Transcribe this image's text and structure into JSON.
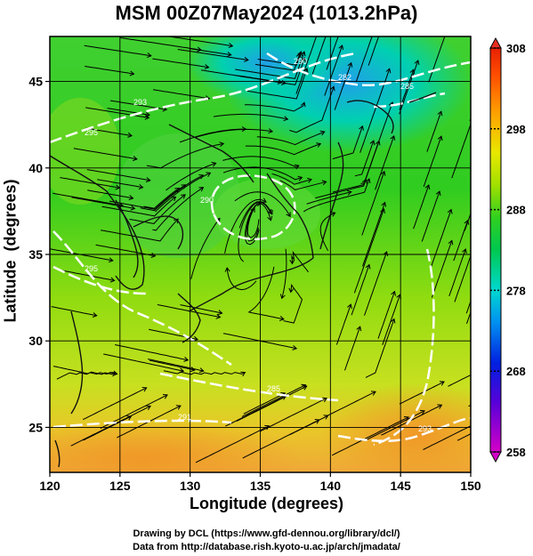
{
  "title": "MSM 00Z07May2024 (1013.2hPa)",
  "axes": {
    "xlabel": "Longitude (degrees)",
    "ylabel": "Latitude  (degrees)",
    "x_ticks": [
      "120",
      "125",
      "130",
      "135",
      "140",
      "145",
      "150"
    ],
    "y_ticks": [
      "25",
      "30",
      "35",
      "40",
      "45"
    ],
    "xlim": [
      120,
      150
    ],
    "ylim": [
      22.4,
      47.6
    ]
  },
  "colorbar": {
    "ticks": [
      "308",
      "298",
      "288",
      "278",
      "268",
      "258"
    ],
    "range": [
      258,
      308
    ]
  },
  "contour_labels": [
    "295",
    "293",
    "290",
    "290",
    "282",
    "285",
    "285",
    "295",
    "293",
    "291"
  ],
  "credits": {
    "line1": "Drawing by DCL (https://www.gfd-dennou.org/library/dcl/)",
    "line2": "Data from http://database.rish.kyoto-u.ac.jp/arch/jmadata/"
  },
  "chart_data": {
    "type": "heatmap",
    "title": "MSM 00Z07May2024 (1013.2hPa)",
    "xlabel": "Longitude (degrees)",
    "ylabel": "Latitude  (degrees)",
    "x_range": [
      120,
      150
    ],
    "y_range": [
      22.4,
      47.6
    ],
    "color_range": [
      258,
      308
    ],
    "overlays": [
      "streamlines",
      "white contours",
      "coastlines",
      "lat-lon grid"
    ]
  }
}
